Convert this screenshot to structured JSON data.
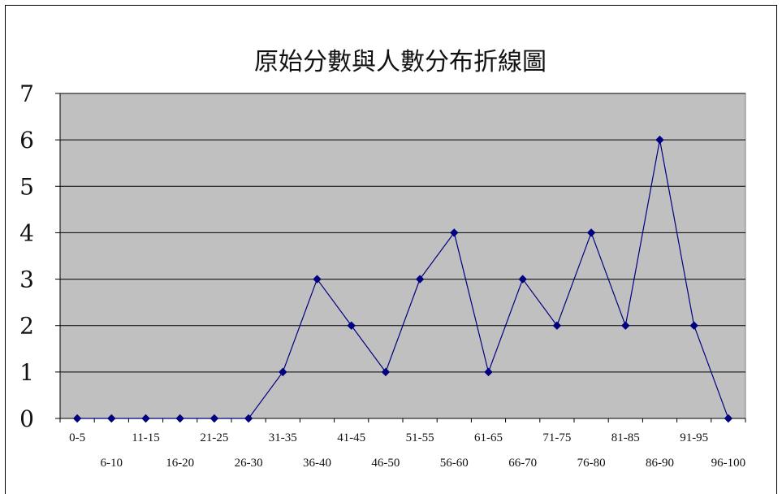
{
  "chart_data": {
    "type": "line",
    "title": "原始分數與人數分布折線圖",
    "xlabel": "",
    "ylabel": "",
    "categories": [
      "0-5",
      "6-10",
      "11-15",
      "16-20",
      "21-25",
      "26-30",
      "31-35",
      "36-40",
      "41-45",
      "46-50",
      "51-55",
      "56-60",
      "61-65",
      "66-70",
      "71-75",
      "76-80",
      "81-85",
      "86-90",
      "91-95",
      "96-100"
    ],
    "series": [
      {
        "values": [
          0,
          0,
          0,
          0,
          0,
          0,
          1,
          3,
          2,
          1,
          3,
          4,
          1,
          3,
          2,
          4,
          2,
          6,
          2,
          0
        ],
        "color": "#000080"
      }
    ],
    "ylim": [
      0,
      7
    ],
    "yticks": [
      "0",
      "1",
      "2",
      "3",
      "4",
      "5",
      "6",
      "7"
    ],
    "grid": true,
    "plot_background": "#c0c0c0",
    "legend": "none"
  }
}
